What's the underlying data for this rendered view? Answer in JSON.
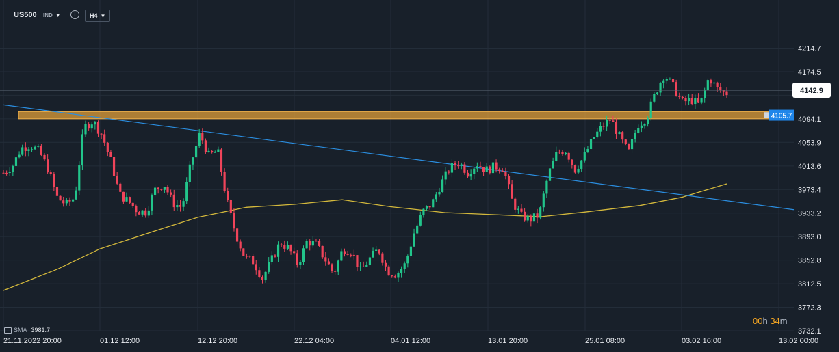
{
  "header": {
    "symbol": "US500",
    "market": "IND",
    "timeframe": "H4"
  },
  "indicator": {
    "name": "SMA",
    "value": "3981.7"
  },
  "countdown": {
    "hours": "00",
    "hours_unit": "h",
    "minutes": "34",
    "minutes_unit": "m"
  },
  "colors": {
    "background": "#18202a",
    "grid": "#232d39",
    "bull": "#22c58b",
    "bear": "#f0445a",
    "sma": "#d4b93c",
    "trendline": "#2b8ee0",
    "zone_fill": "#e8a23a",
    "zone_border": "#f3b54e",
    "price_label": "#1f86ea"
  },
  "chart_data": {
    "type": "candlestick",
    "title": "",
    "xlabel": "",
    "ylabel": "",
    "ylim": [
      3732.1,
      4234.0
    ],
    "y_ticks": [
      "4214.7",
      "4174.5",
      "4134.3",
      "4094.1",
      "4053.9",
      "4013.6",
      "3973.4",
      "3933.2",
      "3893.0",
      "3852.8",
      "3812.5",
      "3772.3",
      "3732.1"
    ],
    "x_ticks": [
      "21.11.2022  20:00",
      "01.12  12:00",
      "12.12  20:00",
      "22.12  04:00",
      "04.01  12:00",
      "13.01  20:00",
      "25.01  08:00",
      "03.02  16:00",
      "13.02  00:00"
    ],
    "current_price": "4142.9",
    "resistance_zone": {
      "low": 4094.1,
      "high": 4106.5,
      "label": "4105.7"
    },
    "trendline": {
      "from": {
        "date": "21.11.2022",
        "price": 4118
      },
      "to": {
        "date": "13.02",
        "price": 3939
      }
    },
    "sma_series": [
      {
        "date": "21.11.2022",
        "value": 3801
      },
      {
        "date": "27.11",
        "value": 3838
      },
      {
        "date": "01.12",
        "value": 3872
      },
      {
        "date": "07.12",
        "value": 3904
      },
      {
        "date": "12.12",
        "value": 3926
      },
      {
        "date": "17.12",
        "value": 3943
      },
      {
        "date": "22.12",
        "value": 3948
      },
      {
        "date": "29.12",
        "value": 3956
      },
      {
        "date": "04.01",
        "value": 3944
      },
      {
        "date": "09.01",
        "value": 3934
      },
      {
        "date": "13.01",
        "value": 3931
      },
      {
        "date": "19.01",
        "value": 3927
      },
      {
        "date": "25.01",
        "value": 3935
      },
      {
        "date": "30.01",
        "value": 3946
      },
      {
        "date": "03.02",
        "value": 3960
      },
      {
        "date": "07.02",
        "value": 3983
      }
    ],
    "price_path": [
      4002,
      4013,
      4044,
      4049,
      4039,
      4008,
      3960,
      3948,
      3960,
      4079,
      4090,
      4068,
      4024,
      3965,
      3953,
      3937,
      3935,
      3974,
      3982,
      3950,
      3943,
      4018,
      4069,
      4031,
      4039,
      3955,
      3898,
      3858,
      3850,
      3822,
      3852,
      3883,
      3872,
      3845,
      3885,
      3880,
      3855,
      3830,
      3872,
      3868,
      3833,
      3855,
      3872,
      3834,
      3828,
      3846,
      3900,
      3936,
      3950,
      3983,
      4010,
      4020,
      4002,
      4018,
      4006,
      4013,
      4010,
      3952,
      3928,
      3922,
      3930,
      3998,
      4037,
      4040,
      4007,
      4029,
      4060,
      4080,
      4094,
      4063,
      4036,
      4083,
      4095,
      4138,
      4170,
      4149,
      4122,
      4127,
      4118,
      4165,
      4144,
      4138
    ]
  }
}
